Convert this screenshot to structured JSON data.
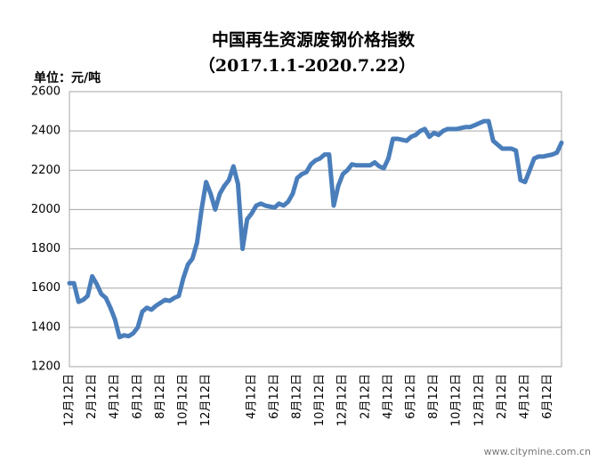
{
  "chart_data": {
    "type": "line",
    "title": "中国再生资源废钢价格指数",
    "subtitle": "（2017.1.1-2020.7.22）",
    "y_unit_label": "单位：元/吨",
    "watermark": "www.citymine.com.cn",
    "color": "#4a7ebb",
    "ylim": [
      1200,
      2600
    ],
    "yticks": [
      1200,
      1400,
      1600,
      1800,
      2000,
      2200,
      2400,
      2600
    ],
    "grid": true,
    "categories": [
      "12月12日",
      null,
      null,
      null,
      null,
      "2月12日",
      null,
      null,
      null,
      null,
      "4月12日",
      null,
      null,
      null,
      null,
      "6月12日",
      null,
      null,
      null,
      null,
      "8月12日",
      null,
      null,
      null,
      null,
      "10月12日",
      null,
      null,
      null,
      null,
      "12月12日",
      null,
      null,
      null,
      null,
      null,
      null,
      null,
      null,
      null,
      "4月12日",
      null,
      null,
      null,
      null,
      "6月12日",
      null,
      null,
      null,
      null,
      "8月12日",
      null,
      null,
      null,
      null,
      "10月12日",
      null,
      null,
      null,
      null,
      "12月12日",
      null,
      null,
      null,
      null,
      "2月12日",
      null,
      null,
      null,
      null,
      "4月12日",
      null,
      null,
      null,
      null,
      "6月12日",
      null,
      null,
      null,
      null,
      "8月12日",
      null,
      null,
      null,
      null,
      "10月12日",
      null,
      null,
      null,
      null,
      "12月12日",
      null,
      null,
      null,
      null,
      "2月12日",
      null,
      null,
      null,
      null,
      "4月12日",
      null,
      null,
      null,
      null,
      "6月12日",
      null,
      null,
      null
    ],
    "values": [
      1625,
      1625,
      1530,
      1540,
      1560,
      1660,
      1620,
      1570,
      1550,
      1500,
      1440,
      1350,
      1360,
      1355,
      1370,
      1400,
      1480,
      1500,
      1490,
      1510,
      1525,
      1540,
      1535,
      1550,
      1560,
      1650,
      1720,
      1750,
      1830,
      2000,
      2140,
      2080,
      2000,
      2080,
      2120,
      2150,
      2220,
      2130,
      1800,
      1950,
      1980,
      2020,
      2030,
      2020,
      2015,
      2010,
      2030,
      2020,
      2040,
      2080,
      2160,
      2180,
      2190,
      2230,
      2250,
      2260,
      2280,
      2280,
      2020,
      2120,
      2180,
      2200,
      2230,
      2225,
      2225,
      2225,
      2225,
      2240,
      2220,
      2210,
      2260,
      2360,
      2360,
      2355,
      2350,
      2370,
      2380,
      2400,
      2410,
      2370,
      2390,
      2380,
      2400,
      2410,
      2410,
      2410,
      2415,
      2420,
      2420,
      2430,
      2440,
      2450,
      2450,
      2350,
      2330,
      2310,
      2310,
      2310,
      2300,
      2150,
      2140,
      2200,
      2260,
      2270,
      2270,
      2275,
      2280,
      2290,
      2340
    ]
  }
}
